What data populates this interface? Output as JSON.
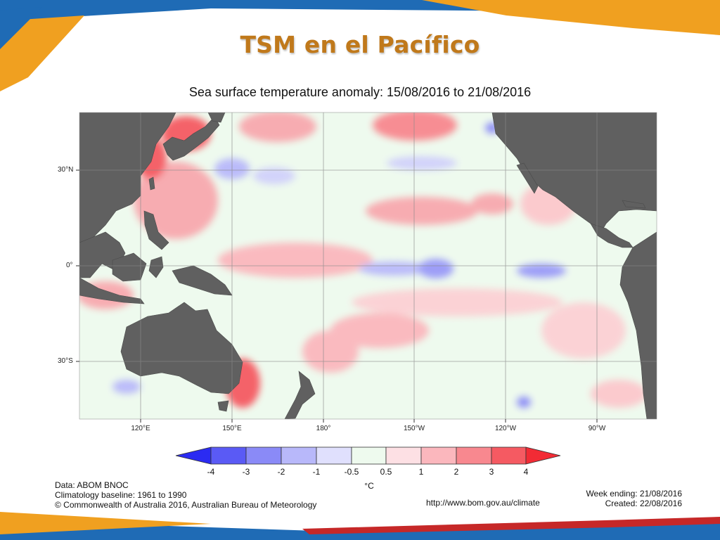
{
  "slide": {
    "title": "TSM en el Pacífico"
  },
  "map": {
    "title": "Sea surface temperature anomaly: 15/08/2016 to 21/08/2016",
    "lat_labels": [
      "30°N",
      "0°",
      "30°S"
    ],
    "lon_labels": [
      "120°E",
      "150°E",
      "180°",
      "150°W",
      "120°W",
      "90°W"
    ]
  },
  "colorbar": {
    "ticks": [
      "-4",
      "-3",
      "-2",
      "-1",
      "-0.5",
      "0.5",
      "1",
      "2",
      "3",
      "4"
    ],
    "unit": "°C",
    "colors": [
      "#2b2bf2",
      "#5a5af5",
      "#8a8af7",
      "#b8b8fa",
      "#e0e0fd",
      "#eefaee",
      "#fde0e4",
      "#fbb7bd",
      "#f8888f",
      "#f55a62",
      "#f22b35"
    ]
  },
  "footer": {
    "data_source": "Data: ABOM BNOC",
    "baseline": "Climatology baseline: 1961 to 1990",
    "copyright": "© Commonwealth of Australia 2016, Australian Bureau of Meteorology",
    "url": "http://www.bom.gov.au/climate",
    "week_ending": "Week ending: 21/08/2016",
    "created": "Created: 22/08/2016"
  }
}
